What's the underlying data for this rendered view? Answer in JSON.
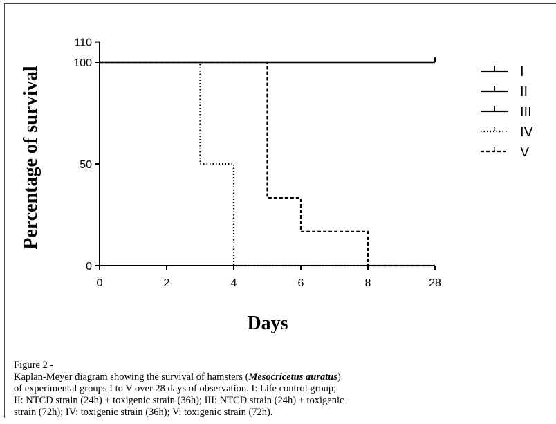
{
  "chart_data": {
    "type": "line",
    "step": true,
    "ylabel": "Percentage of survival",
    "xlabel": "Days",
    "y_ticks": [
      "0",
      "50",
      "100",
      "110"
    ],
    "y_tick_values": [
      0,
      50,
      100,
      110
    ],
    "ylim": [
      0,
      110
    ],
    "x_ticks": [
      "0",
      "2",
      "4",
      "6",
      "8",
      "28"
    ],
    "x_tick_values": [
      0,
      2,
      4,
      6,
      8,
      28
    ],
    "x_axis_break": "non-linear: ticks equally spaced, last tick 28",
    "grid": false,
    "legend_position": "right",
    "series": [
      {
        "name": "I",
        "style": "solid",
        "x": [
          0,
          28
        ],
        "y": [
          100,
          100
        ]
      },
      {
        "name": "II",
        "style": "solid",
        "x": [
          0,
          28
        ],
        "y": [
          100,
          100
        ]
      },
      {
        "name": "III",
        "style": "solid",
        "x": [
          0,
          28
        ],
        "y": [
          100,
          100
        ]
      },
      {
        "name": "IV",
        "style": "dotted",
        "x": [
          0,
          3,
          3,
          4,
          4,
          28
        ],
        "y": [
          100,
          100,
          50,
          50,
          0,
          0
        ]
      },
      {
        "name": "V",
        "style": "dashed",
        "x": [
          0,
          5,
          5,
          6,
          6,
          8,
          8,
          28
        ],
        "y": [
          100,
          100,
          33.3,
          33.3,
          16.7,
          16.7,
          0,
          0
        ]
      }
    ]
  },
  "caption": {
    "lead": "Figure 2 - ",
    "lines": [
      [
        "Kaplan-Meyer diagram showing the survival of hamsters (",
        "Mesocricetus auratus",
        ")"
      ],
      [
        "of experimental groups I to V over 28 days of observation. I: Life control group;",
        "",
        ""
      ],
      [
        "II: NTCD strain (24h) + toxigenic strain (36h); III: NTCD strain (24h) + toxigenic",
        "",
        ""
      ],
      [
        "strain (72h); IV: toxigenic strain (36h); V: toxigenic strain (72h).",
        "",
        ""
      ]
    ]
  }
}
